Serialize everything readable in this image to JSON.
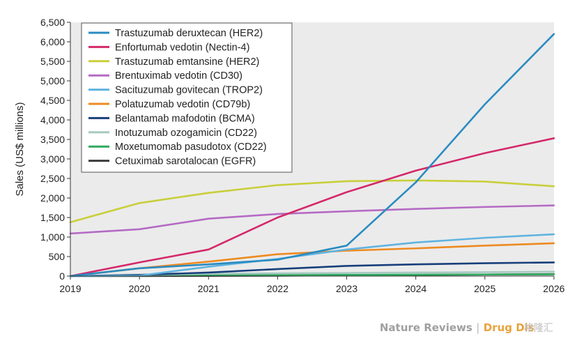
{
  "chart_data": {
    "type": "line",
    "title": "",
    "xlabel": "",
    "ylabel": "Sales (US$ millions)",
    "x": [
      2019,
      2020,
      2021,
      2022,
      2023,
      2024,
      2025,
      2026
    ],
    "xlim": [
      2019,
      2026
    ],
    "ylim": [
      0,
      6500
    ],
    "yticks": [
      0,
      500,
      1000,
      1500,
      2000,
      2500,
      3000,
      3500,
      4000,
      4500,
      5000,
      5500,
      6000,
      6500
    ],
    "ytick_labels": [
      "0",
      "500",
      "1,000",
      "1,500",
      "2,000",
      "2,500",
      "3,000",
      "3,500",
      "4,000",
      "4,500",
      "5,000",
      "5,500",
      "6,000",
      "6,500"
    ],
    "xtick_labels": [
      "2019",
      "2020",
      "2021",
      "2022",
      "2023",
      "2024",
      "2025",
      "2026"
    ],
    "grid": false,
    "legend_position": "top-left",
    "series": [
      {
        "name": "Trastuzumab deruxtecan (HER2)",
        "color": "#2a8bc1",
        "values": [
          0,
          200,
          300,
          420,
          780,
          2400,
          4400,
          6200
        ]
      },
      {
        "name": "Enfortumab vedotin (Nectin-4)",
        "color": "#d4286a",
        "values": [
          0,
          350,
          680,
          1500,
          2150,
          2700,
          3150,
          3530
        ]
      },
      {
        "name": "Trastuzumab emtansine (HER2)",
        "color": "#c9cf3a",
        "values": [
          1380,
          1870,
          2130,
          2330,
          2430,
          2450,
          2420,
          2300
        ]
      },
      {
        "name": "Brentuximab vedotin (CD30)",
        "color": "#b46bc4",
        "values": [
          1090,
          1200,
          1470,
          1590,
          1660,
          1720,
          1770,
          1810
        ]
      },
      {
        "name": "Sacituzumab govitecan (TROP2)",
        "color": "#5fb3e0",
        "values": [
          0,
          10,
          240,
          440,
          680,
          860,
          980,
          1070
        ]
      },
      {
        "name": "Polatuzumab vedotin (CD79b)",
        "color": "#ee8a1f",
        "values": [
          0,
          200,
          370,
          560,
          650,
          710,
          780,
          840
        ]
      },
      {
        "name": "Belantamab mafodotin (BCMA)",
        "color": "#173f7a",
        "values": [
          0,
          30,
          90,
          180,
          260,
          300,
          330,
          350
        ]
      },
      {
        "name": "Inotuzumab ozogamicin (CD22)",
        "color": "#a6c9c0",
        "values": [
          0,
          30,
          60,
          70,
          80,
          90,
          100,
          110
        ]
      },
      {
        "name": "Moxetumomab pasudotox (CD22)",
        "color": "#2eaa5f",
        "values": [
          0,
          10,
          20,
          25,
          30,
          35,
          40,
          45
        ]
      },
      {
        "name": "Cetuximab sarotalocan (EGFR)",
        "color": "#3b3b3b",
        "values": [
          0,
          0,
          5,
          10,
          20,
          30,
          40,
          50
        ]
      }
    ]
  },
  "footer": {
    "journal": "Nature Reviews",
    "separator": " | ",
    "section": "Drug Dis",
    "watermark": "格隆汇"
  }
}
